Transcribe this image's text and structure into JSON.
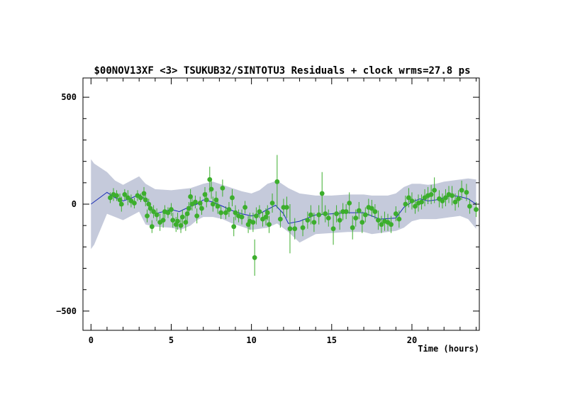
{
  "chart_data": {
    "type": "scatter",
    "title": "$00NOV13XF <3> TSUKUB32/SINTOTU3 Residuals + clock wrms=27.8  ps",
    "xlabel": "Time (hours)",
    "ylabel": "",
    "xlim": [
      -0.5,
      24.2
    ],
    "ylim": [
      -590,
      590
    ],
    "x_ticks": [
      0,
      5,
      10,
      15,
      20
    ],
    "x_tick_labels": [
      "0",
      "5",
      "10",
      "15",
      "20"
    ],
    "y_ticks": [
      -500,
      0,
      500
    ],
    "y_tick_labels": [
      "−500",
      "0",
      "500"
    ],
    "colors": {
      "points": "#3cae2c",
      "error_bars": "#3cae2c",
      "clock_line": "#1a2db5",
      "band": "#c5cadb"
    },
    "series": [
      {
        "kind": "band",
        "x": [
          0.0,
          0.2,
          1.0,
          1.5,
          2.0,
          2.5,
          3.0,
          3.4,
          4.0,
          5.0,
          5.6,
          6.2,
          6.6,
          7.0,
          7.6,
          8.2,
          8.8,
          9.4,
          10.0,
          10.5,
          11.0,
          11.6,
          12.3,
          13.0,
          14.0,
          15.0,
          16.0,
          17.0,
          17.5,
          18.0,
          18.5,
          19.0,
          19.5,
          20.0,
          20.5,
          21.0,
          21.5,
          22.0,
          22.5,
          23.0,
          23.5,
          24.0
        ],
        "upper": [
          210,
          190,
          150,
          110,
          90,
          110,
          130,
          95,
          70,
          65,
          70,
          75,
          85,
          95,
          105,
          90,
          75,
          60,
          50,
          65,
          95,
          110,
          75,
          50,
          40,
          40,
          45,
          45,
          40,
          40,
          40,
          50,
          80,
          95,
          95,
          90,
          95,
          105,
          110,
          115,
          120,
          115
        ],
        "lower": [
          -210,
          -190,
          -45,
          -60,
          -75,
          -55,
          -35,
          -95,
          -105,
          -110,
          -120,
          -100,
          -75,
          -60,
          -60,
          -70,
          -90,
          -105,
          -120,
          -115,
          -110,
          -90,
          -130,
          -180,
          -140,
          -135,
          -130,
          -130,
          -140,
          -135,
          -130,
          -125,
          -110,
          -80,
          -70,
          -70,
          -70,
          -65,
          -60,
          -55,
          -70,
          -115
        ]
      },
      {
        "kind": "line",
        "name": "clock",
        "x": [
          0.0,
          1.0,
          1.5,
          2.0,
          2.5,
          3.0,
          3.5,
          4.0,
          5.0,
          5.5,
          6.2,
          6.6,
          7.0,
          7.6,
          8.2,
          8.8,
          9.4,
          10.0,
          10.5,
          11.0,
          11.5,
          12.0,
          12.3,
          13.0,
          14.0,
          15.0,
          16.0,
          17.0,
          18.0,
          19.0,
          19.5,
          20.0,
          20.5,
          21.0,
          21.5,
          22.0,
          22.5,
          23.0,
          23.5,
          24.0
        ],
        "y": [
          0,
          55,
          30,
          15,
          28,
          45,
          15,
          -45,
          -25,
          -35,
          -10,
          0,
          20,
          10,
          -10,
          -30,
          -45,
          -55,
          -45,
          -25,
          -5,
          -45,
          -90,
          -80,
          -50,
          -45,
          -40,
          -40,
          -70,
          -65,
          -15,
          10,
          25,
          15,
          20,
          30,
          40,
          35,
          25,
          0
        ]
      },
      {
        "kind": "errorbar",
        "name": "residuals",
        "points": [
          [
            1.2,
            30,
            25
          ],
          [
            1.4,
            45,
            30
          ],
          [
            1.6,
            40,
            25
          ],
          [
            1.8,
            20,
            30
          ],
          [
            1.9,
            0,
            35
          ],
          [
            2.1,
            45,
            25
          ],
          [
            2.3,
            30,
            35
          ],
          [
            2.5,
            15,
            30
          ],
          [
            2.7,
            5,
            25
          ],
          [
            2.9,
            40,
            25
          ],
          [
            3.1,
            30,
            20
          ],
          [
            3.3,
            50,
            30
          ],
          [
            3.4,
            20,
            30
          ],
          [
            3.5,
            -55,
            30
          ],
          [
            3.6,
            0,
            25
          ],
          [
            3.7,
            -20,
            25
          ],
          [
            3.9,
            -35,
            30
          ],
          [
            3.8,
            -105,
            30
          ],
          [
            4.1,
            -50,
            30
          ],
          [
            4.3,
            -85,
            40
          ],
          [
            4.5,
            -75,
            35
          ],
          [
            4.6,
            -35,
            30
          ],
          [
            4.8,
            -40,
            25
          ],
          [
            5.0,
            -25,
            30
          ],
          [
            5.1,
            -75,
            35
          ],
          [
            5.3,
            -95,
            35
          ],
          [
            5.4,
            -80,
            40
          ],
          [
            5.6,
            -100,
            35
          ],
          [
            5.7,
            -60,
            35
          ],
          [
            5.9,
            -85,
            40
          ],
          [
            6.0,
            -45,
            35
          ],
          [
            6.1,
            -20,
            30
          ],
          [
            6.2,
            35,
            35
          ],
          [
            6.3,
            0,
            30
          ],
          [
            6.5,
            10,
            30
          ],
          [
            6.6,
            -55,
            35
          ],
          [
            6.8,
            5,
            30
          ],
          [
            6.9,
            -20,
            30
          ],
          [
            7.1,
            45,
            35
          ],
          [
            7.2,
            20,
            35
          ],
          [
            7.4,
            115,
            60
          ],
          [
            7.5,
            70,
            45
          ],
          [
            7.6,
            0,
            35
          ],
          [
            7.8,
            20,
            40
          ],
          [
            7.9,
            -10,
            35
          ],
          [
            8.1,
            -40,
            30
          ],
          [
            8.2,
            75,
            40
          ],
          [
            8.4,
            -40,
            30
          ],
          [
            8.6,
            -25,
            35
          ],
          [
            8.8,
            30,
            40
          ],
          [
            8.9,
            -105,
            45
          ],
          [
            9.0,
            -40,
            35
          ],
          [
            9.2,
            -55,
            30
          ],
          [
            9.4,
            -60,
            35
          ],
          [
            9.6,
            -15,
            30
          ],
          [
            9.8,
            -95,
            40
          ],
          [
            9.9,
            -80,
            40
          ],
          [
            10.1,
            -85,
            45
          ],
          [
            10.2,
            -250,
            85
          ],
          [
            10.3,
            -55,
            40
          ],
          [
            10.5,
            -35,
            30
          ],
          [
            10.7,
            -70,
            35
          ],
          [
            10.9,
            -60,
            40
          ],
          [
            11.0,
            -40,
            35
          ],
          [
            11.1,
            -95,
            40
          ],
          [
            11.3,
            5,
            45
          ],
          [
            11.6,
            105,
            125
          ],
          [
            11.8,
            -70,
            40
          ],
          [
            12.0,
            -15,
            40
          ],
          [
            12.2,
            -15,
            50
          ],
          [
            12.4,
            -115,
            115
          ],
          [
            12.7,
            -115,
            50
          ],
          [
            13.2,
            -110,
            40
          ],
          [
            13.5,
            -75,
            40
          ],
          [
            13.7,
            -50,
            45
          ],
          [
            13.9,
            -85,
            45
          ],
          [
            14.2,
            -50,
            45
          ],
          [
            14.4,
            50,
            100
          ],
          [
            14.6,
            -45,
            40
          ],
          [
            14.8,
            -65,
            40
          ],
          [
            15.1,
            -115,
            75
          ],
          [
            15.3,
            -45,
            40
          ],
          [
            15.5,
            -75,
            45
          ],
          [
            15.7,
            -35,
            40
          ],
          [
            15.9,
            -35,
            35
          ],
          [
            16.1,
            5,
            50
          ],
          [
            16.3,
            -110,
            55
          ],
          [
            16.5,
            -65,
            40
          ],
          [
            16.7,
            -30,
            40
          ],
          [
            16.9,
            -85,
            50
          ],
          [
            17.1,
            -50,
            35
          ],
          [
            17.3,
            -15,
            40
          ],
          [
            17.5,
            -20,
            40
          ],
          [
            17.7,
            -35,
            35
          ],
          [
            17.9,
            -75,
            45
          ],
          [
            18.1,
            -95,
            40
          ],
          [
            18.3,
            -80,
            45
          ],
          [
            18.5,
            -85,
            40
          ],
          [
            18.7,
            -95,
            40
          ],
          [
            19.0,
            -45,
            35
          ],
          [
            19.2,
            -70,
            40
          ],
          [
            19.6,
            0,
            40
          ],
          [
            19.8,
            30,
            45
          ],
          [
            20.0,
            15,
            40
          ],
          [
            20.2,
            -10,
            35
          ],
          [
            20.4,
            5,
            40
          ],
          [
            20.6,
            10,
            35
          ],
          [
            20.8,
            30,
            40
          ],
          [
            21.0,
            40,
            40
          ],
          [
            21.2,
            45,
            45
          ],
          [
            21.4,
            65,
            60
          ],
          [
            21.7,
            25,
            40
          ],
          [
            21.9,
            15,
            35
          ],
          [
            22.1,
            30,
            40
          ],
          [
            22.3,
            45,
            40
          ],
          [
            22.5,
            40,
            45
          ],
          [
            22.7,
            10,
            40
          ],
          [
            22.9,
            25,
            40
          ],
          [
            23.1,
            65,
            45
          ],
          [
            23.4,
            55,
            40
          ],
          [
            23.6,
            -10,
            35
          ],
          [
            24.0,
            -25,
            35
          ]
        ]
      }
    ]
  }
}
